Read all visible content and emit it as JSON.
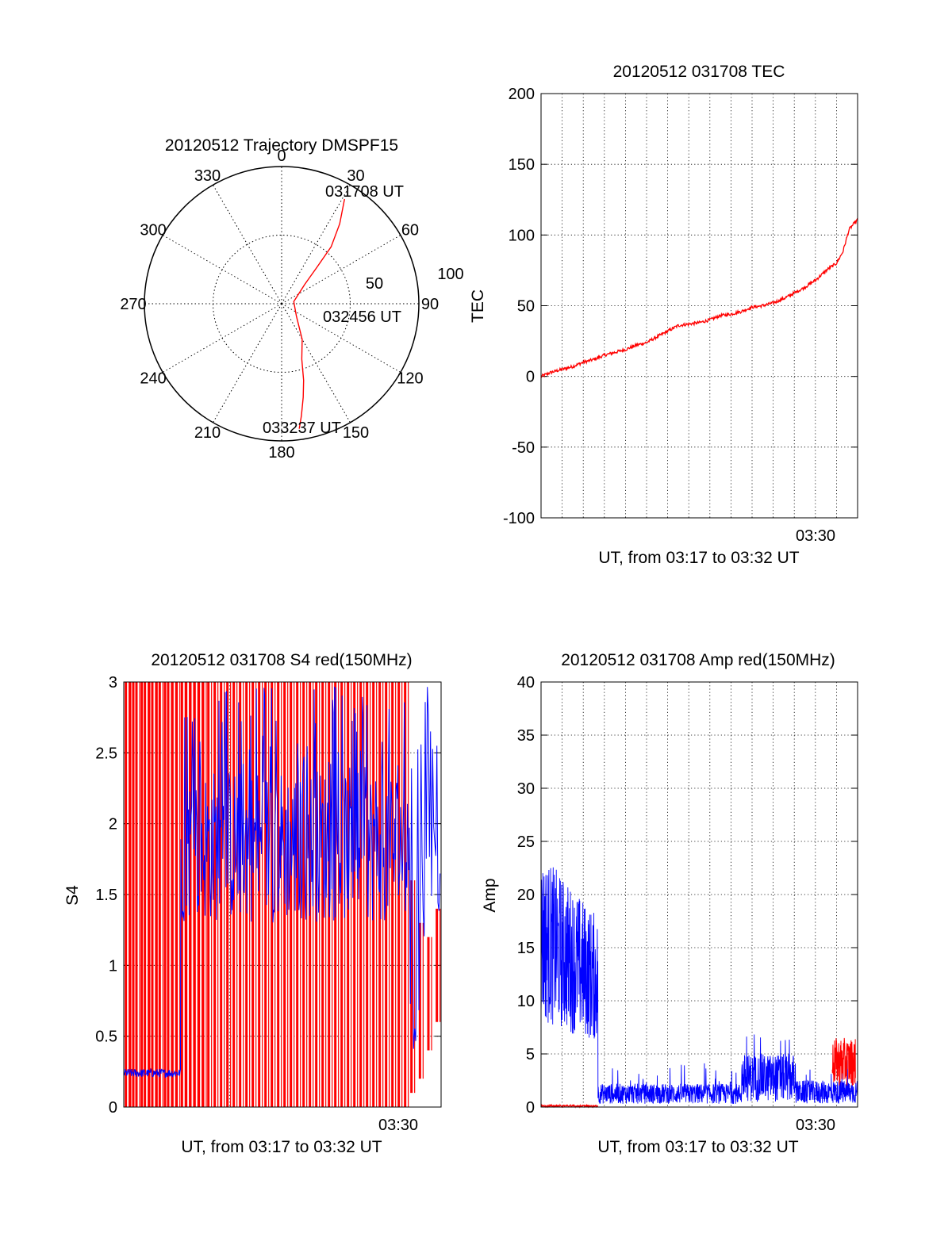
{
  "colors": {
    "red": "#ff0000",
    "blue": "#0000ff",
    "grid": "#000000"
  },
  "chart_data": [
    {
      "type": "polar",
      "title": "20120512 Trajectory DMSPF15",
      "angle_labels": [
        "0",
        "30",
        "60",
        "90",
        "120",
        "150",
        "180",
        "210",
        "240",
        "270",
        "300",
        "330"
      ],
      "radius_labels": [
        "50",
        "100"
      ],
      "rlim": [
        0,
        100
      ],
      "series": [
        {
          "color": "#ff0000",
          "points": [
            [
              31,
              89
            ],
            [
              36,
              72
            ],
            [
              41,
              55
            ],
            [
              44,
              37
            ],
            [
              50,
              22
            ],
            [
              80,
              9
            ],
            [
              130,
              14
            ],
            [
              150,
              30
            ],
            [
              160,
              43
            ],
            [
              164,
              58
            ],
            [
              167,
              70
            ],
            [
              170,
              83
            ],
            [
              172,
              92
            ]
          ]
        }
      ],
      "annotations": [
        "031708 UT",
        "032456 UT",
        "033237 UT"
      ]
    },
    {
      "type": "line",
      "title": "20120512 031708 TEC",
      "ylabel": "TEC",
      "xlabel": "UT, from 03:17 to 03:32 UT",
      "x_tick_labels": [
        "03:30"
      ],
      "xlim": [
        0,
        15
      ],
      "ylim": [
        -100,
        200
      ],
      "y_ticks": [
        -100,
        -50,
        0,
        50,
        100,
        150,
        200
      ],
      "grid": true,
      "series": [
        {
          "color": "#ff0000",
          "x": [
            0,
            0.5,
            1,
            1.5,
            2,
            2.5,
            3,
            3.5,
            4,
            4.5,
            5,
            5.5,
            6,
            6.5,
            7,
            7.5,
            8,
            8.5,
            9,
            9.5,
            10,
            10.5,
            11,
            11.5,
            12,
            12.5,
            13,
            13.3,
            13.6,
            14,
            14.3,
            14.6,
            15
          ],
          "y": [
            0,
            3,
            5,
            7,
            10,
            12,
            15,
            17,
            19,
            22,
            24,
            28,
            32,
            36,
            37,
            38,
            40,
            43,
            44,
            46,
            49,
            50,
            52,
            55,
            59,
            63,
            68,
            72,
            76,
            80,
            88,
            104,
            111
          ]
        }
      ]
    },
    {
      "type": "line",
      "title": "20120512 031708 S4 red(150MHz)",
      "ylabel": "S4",
      "xlabel": "UT, from 03:17 to 03:32 UT",
      "x_tick_labels": [
        "03:30"
      ],
      "xlim": [
        0,
        15
      ],
      "ylim": [
        0,
        3
      ],
      "y_ticks": [
        "0",
        "0.5",
        "1",
        "1.5",
        "2",
        "2.5",
        "3"
      ],
      "grid": true,
      "series": [
        {
          "color": "#ff0000",
          "description_values": [
            [
              0.1,
              0,
              3
            ],
            [
              0.3,
              0,
              3
            ],
            [
              0.45,
              0,
              3
            ],
            [
              0.6,
              0,
              3
            ],
            [
              0.85,
              0,
              3
            ],
            [
              1.0,
              0,
              3
            ],
            [
              1.2,
              0,
              3
            ],
            [
              1.35,
              0,
              3
            ],
            [
              1.55,
              0,
              3
            ],
            [
              1.7,
              0,
              3
            ],
            [
              1.95,
              0,
              3
            ],
            [
              2.1,
              0,
              3
            ],
            [
              2.3,
              0,
              3
            ],
            [
              2.5,
              0,
              3
            ],
            [
              2.75,
              0,
              3
            ],
            [
              2.95,
              0,
              3
            ],
            [
              3.15,
              0,
              3
            ],
            [
              3.35,
              0,
              3
            ],
            [
              3.55,
              0,
              3
            ],
            [
              3.75,
              0,
              3
            ],
            [
              4.0,
              0,
              3
            ],
            [
              4.3,
              0,
              3
            ],
            [
              4.6,
              0,
              3
            ],
            [
              4.9,
              0,
              3
            ],
            [
              5.2,
              0,
              3
            ],
            [
              5.5,
              0,
              3
            ],
            [
              5.8,
              0,
              3
            ],
            [
              6.1,
              0,
              3
            ],
            [
              6.4,
              0,
              3
            ],
            [
              6.7,
              0,
              3
            ],
            [
              7.0,
              0,
              3
            ],
            [
              7.3,
              0,
              3
            ],
            [
              7.6,
              0,
              3
            ],
            [
              7.9,
              0,
              3
            ],
            [
              8.2,
              0,
              3
            ],
            [
              8.5,
              0,
              3
            ],
            [
              8.8,
              0,
              3
            ],
            [
              9.1,
              0,
              3
            ],
            [
              9.4,
              0,
              3
            ],
            [
              9.7,
              0,
              3
            ],
            [
              10.0,
              0,
              3
            ],
            [
              10.3,
              0,
              3
            ],
            [
              10.6,
              0,
              3
            ],
            [
              10.9,
              0,
              3
            ],
            [
              11.2,
              0,
              3
            ],
            [
              11.5,
              0,
              3
            ],
            [
              11.8,
              0,
              3
            ],
            [
              12.1,
              0,
              3
            ],
            [
              12.4,
              0,
              3
            ],
            [
              12.7,
              0,
              3
            ],
            [
              13.0,
              0,
              3
            ],
            [
              13.3,
              0,
              3
            ],
            [
              13.6,
              0.1,
              1.6
            ],
            [
              14.0,
              0.2,
              1.3
            ],
            [
              14.4,
              0.4,
              1.2
            ],
            [
              14.8,
              0.6,
              1.4
            ]
          ]
        },
        {
          "color": "#0000ff",
          "baseline": {
            "x": [
              0,
              2.7
            ],
            "y": 0.24
          },
          "band": {
            "x": [
              2.7,
              13.5
            ],
            "y_low": 1.3,
            "y_high": 2.4,
            "peak": 3
          }
        }
      ]
    },
    {
      "type": "line",
      "title": "20120512 031708 Amp red(150MHz)",
      "ylabel": "Amp",
      "xlabel": "UT, from 03:17 to 03:32 UT",
      "x_tick_labels": [
        "03:30"
      ],
      "xlim": [
        0,
        15
      ],
      "ylim": [
        0,
        40
      ],
      "y_ticks": [
        0,
        5,
        10,
        15,
        20,
        25,
        30,
        35,
        40
      ],
      "grid": true,
      "series": [
        {
          "color": "#0000ff",
          "segments": [
            {
              "x": [
                0,
                2.7
              ],
              "y_low": 6,
              "y_high": 24,
              "start_high": 24,
              "end_high": 18
            },
            {
              "x": [
                2.7,
                9.5
              ],
              "y_low": 0.3,
              "y_high": 2.2
            },
            {
              "x": [
                9.5,
                12
              ],
              "y_low": 0.5,
              "y_high": 5
            },
            {
              "x": [
                12,
                15
              ],
              "y_low": 0.3,
              "y_high": 2.5
            }
          ]
        },
        {
          "color": "#ff0000",
          "segments": [
            {
              "x": [
                0,
                2.7
              ],
              "y_low": 0,
              "y_high": 0.2
            },
            {
              "x": [
                13.8,
                14.9
              ],
              "y_low": 2,
              "y_high": 6.5
            }
          ]
        }
      ]
    }
  ]
}
